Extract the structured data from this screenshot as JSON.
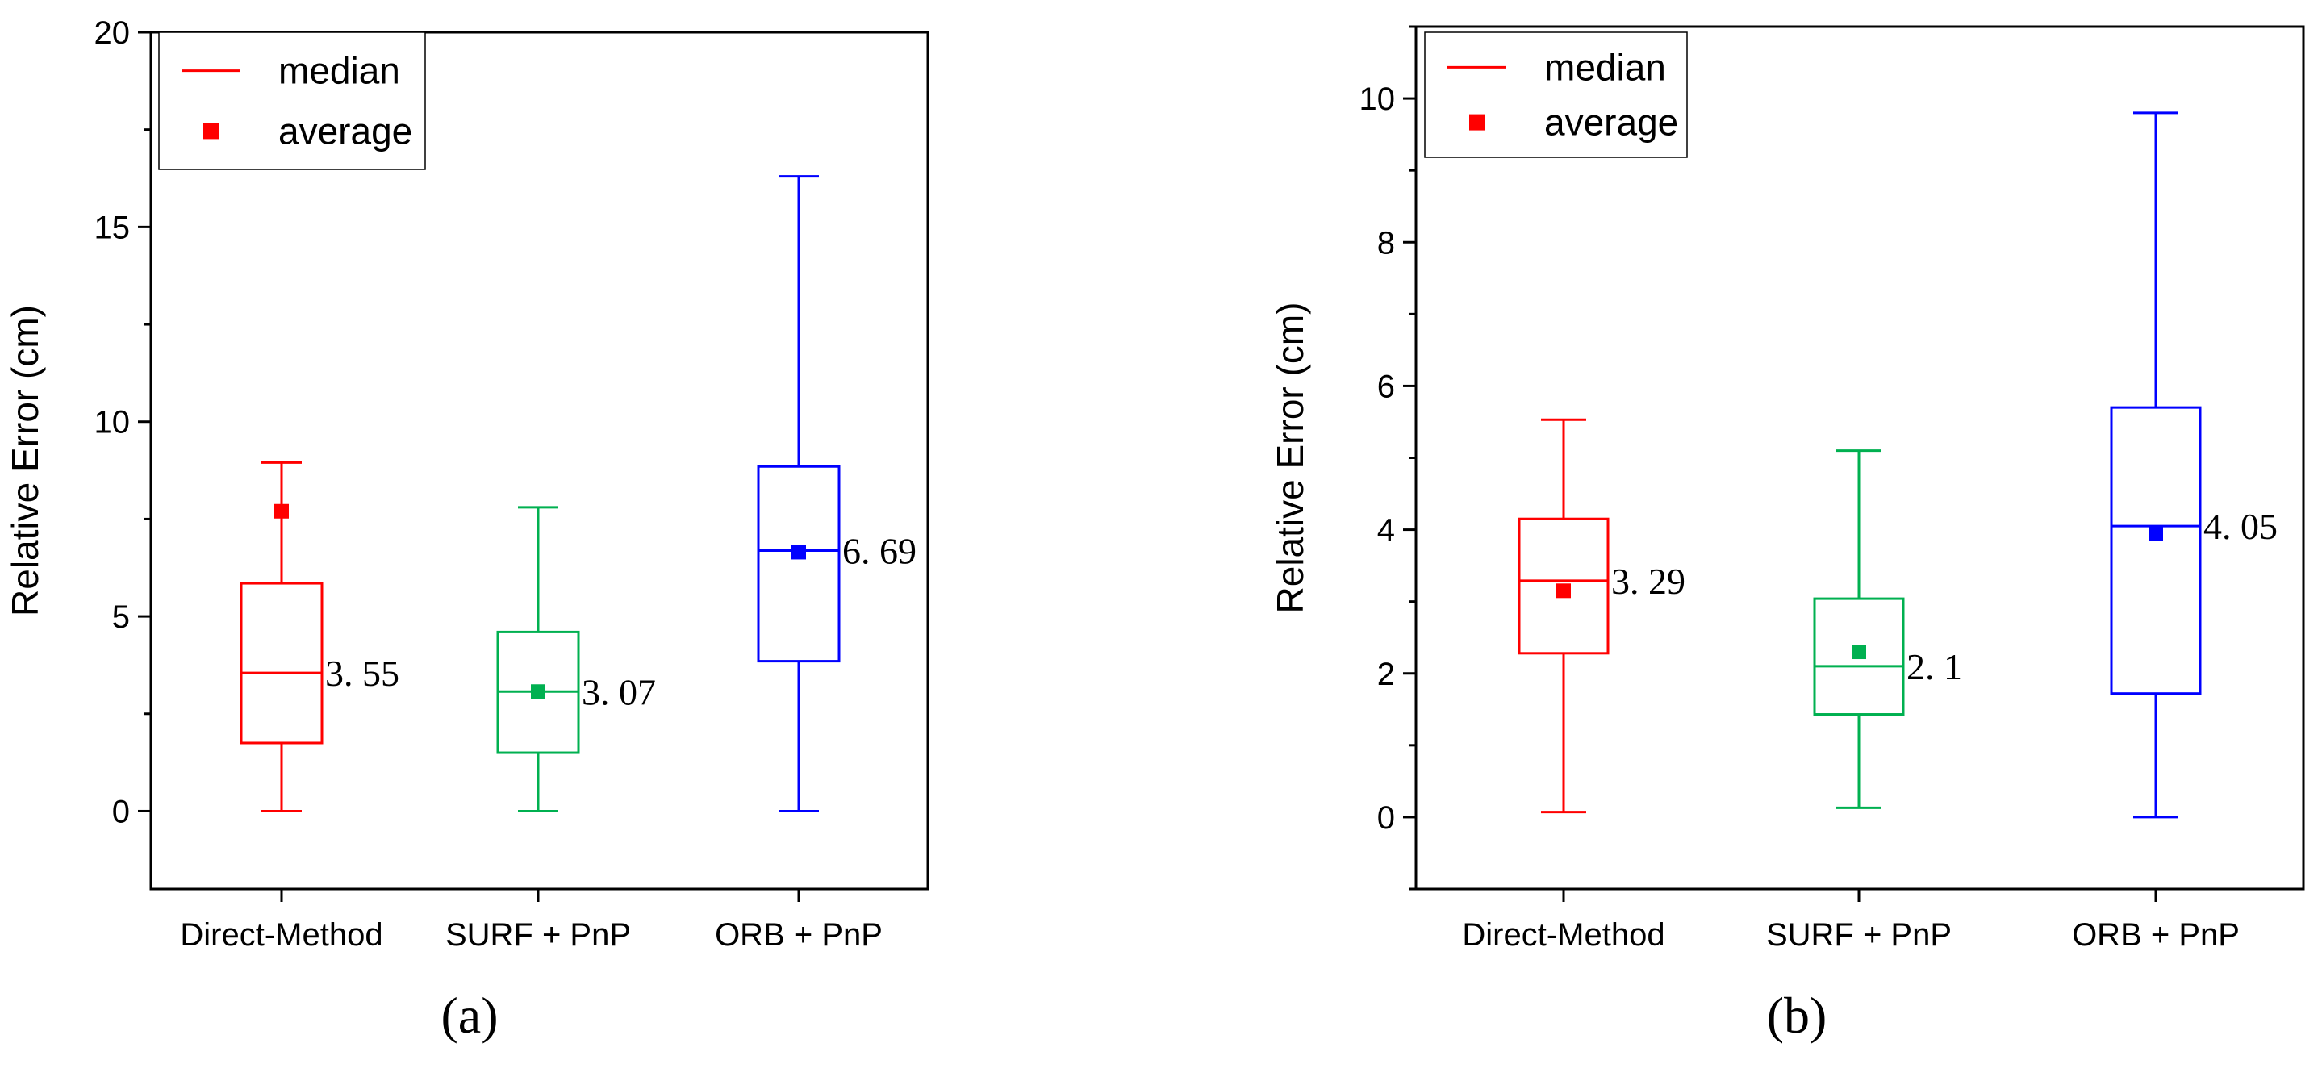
{
  "chart_data": [
    {
      "type": "box",
      "panel_label": "(a)",
      "ylabel": "Relative Error (cm)",
      "ylim": [
        -2,
        20
      ],
      "yticks": [
        0,
        5,
        10,
        15,
        20
      ],
      "y_minor_step": 2.5,
      "categories": [
        "Direct-Method",
        "SURF + PnP",
        "ORB + PnP"
      ],
      "legend": {
        "median": "median",
        "average": "average",
        "placement": "top-left"
      },
      "boxes": [
        {
          "name": "Direct-Method",
          "color": "#ff0000",
          "min": 0,
          "q1": 1.75,
          "median": 3.55,
          "q3": 5.85,
          "max": 8.95,
          "mean": 7.7,
          "median_label": "3. 55"
        },
        {
          "name": "SURF + PnP",
          "color": "#00b050",
          "min": 0,
          "q1": 1.5,
          "median": 3.07,
          "q3": 4.6,
          "max": 7.8,
          "mean": 3.07,
          "median_label": "3. 07"
        },
        {
          "name": "ORB + PnP",
          "color": "#0000ff",
          "min": 0,
          "q1": 3.85,
          "median": 6.69,
          "q3": 8.85,
          "max": 16.3,
          "mean": 6.65,
          "median_label": "6. 69"
        }
      ]
    },
    {
      "type": "box",
      "panel_label": "(b)",
      "ylabel": "Relative Error (cm)",
      "ylim": [
        -1,
        11
      ],
      "yticks": [
        0,
        2,
        4,
        6,
        8,
        10
      ],
      "y_minor_step": 1,
      "categories": [
        "Direct-Method",
        "SURF + PnP",
        "ORB + PnP"
      ],
      "legend": {
        "median": "median",
        "average": "average",
        "placement": "top-left"
      },
      "boxes": [
        {
          "name": "Direct-Method",
          "color": "#ff0000",
          "min": 0.07,
          "q1": 2.28,
          "median": 3.29,
          "q3": 4.15,
          "max": 5.53,
          "mean": 3.15,
          "median_label": "3. 29"
        },
        {
          "name": "SURF + PnP",
          "color": "#00b050",
          "min": 0.13,
          "q1": 1.43,
          "median": 2.1,
          "q3": 3.04,
          "max": 5.1,
          "mean": 2.3,
          "median_label": "2. 1"
        },
        {
          "name": "ORB + PnP",
          "color": "#0000ff",
          "min": 0,
          "q1": 1.72,
          "median": 4.05,
          "q3": 5.7,
          "max": 9.8,
          "mean": 3.95,
          "median_label": "4. 05"
        }
      ]
    }
  ]
}
